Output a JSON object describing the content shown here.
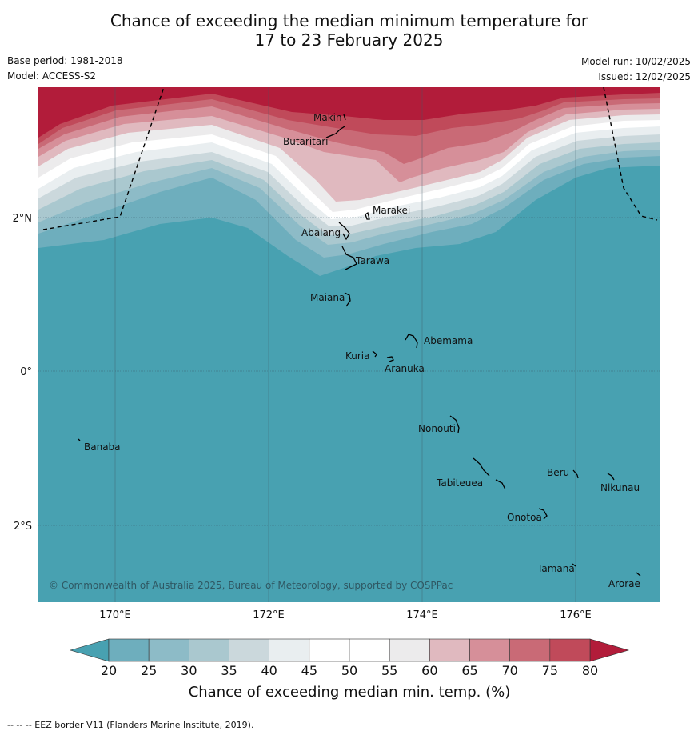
{
  "title": {
    "line1": "Chance of exceeding the median minimum temperature for",
    "line2": "17 to 23 February 2025"
  },
  "meta": {
    "base_period": "Base period: 1981-2018",
    "model": "Model: ACCESS-S2",
    "model_run": "Model run: 10/02/2025",
    "issued": "Issued: 12/02/2025"
  },
  "axes": {
    "x_ticks": [
      "170°E",
      "172°E",
      "174°E",
      "176°E"
    ],
    "y_ticks": [
      "2°N",
      "0°",
      "2°S"
    ]
  },
  "places": [
    "Makin",
    "Butaritari",
    "Marakei",
    "Abaiang",
    "Tarawa",
    "Maiana",
    "Abemama",
    "Kuria",
    "Aranuka",
    "Nonouti",
    "Banaba",
    "Beru",
    "Nikunau",
    "Tabiteuea",
    "Onotoa",
    "Tamana",
    "Arorae"
  ],
  "copyright": "© Commonwealth of Australia 2025, Bureau of Meteorology, supported by COSPPac",
  "colorbar": {
    "ticks": [
      "20",
      "25",
      "30",
      "35",
      "40",
      "45",
      "50",
      "55",
      "60",
      "65",
      "70",
      "75",
      "80"
    ],
    "colors": [
      "#6eaebd",
      "#8dbbc7",
      "#aac8cf",
      "#cbd8dc",
      "#e9eef0",
      "#ffffff",
      "#ffffff",
      "#ecebec",
      "#e0b9bf",
      "#d68f99",
      "#c96a76",
      "#c04a5a"
    ],
    "low_color": "#48a1b1",
    "high_color": "#b21c3a",
    "title": "Chance of exceeding median min. temp. (%)"
  },
  "footer": "--  --  -- EEZ border V11 (Flanders Marine Institute, 2019)."
}
